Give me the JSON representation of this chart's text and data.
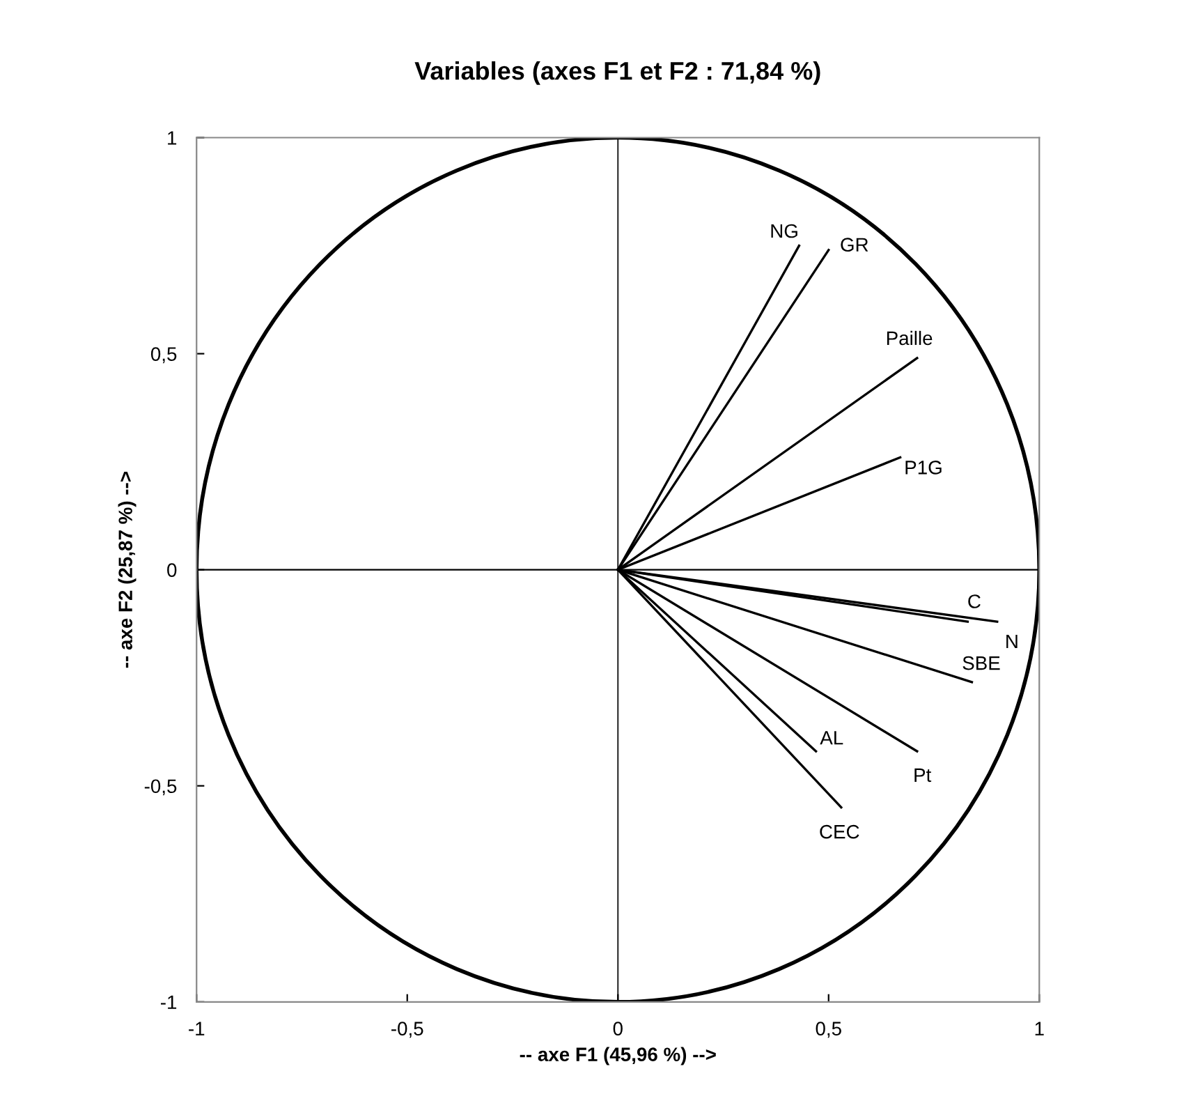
{
  "chart_data": {
    "type": "line",
    "title": "Variables (axes F1 et F2 : 71,84 %)",
    "xlabel": "-- axe F1 (45,96 %) -->",
    "ylabel": "-- axe F2 (25,87 %) -->",
    "xlim": [
      -1,
      1
    ],
    "ylim": [
      -1,
      1
    ],
    "xticks": [
      -1,
      {
        "value": -0.5,
        "label": "-0,5"
      },
      0,
      {
        "value": 0.5,
        "label": "0,5"
      },
      1
    ],
    "yticks": [
      -1,
      {
        "value": -0.5,
        "label": "-0,5"
      },
      0,
      {
        "value": 0.5,
        "label": "0,5"
      },
      1
    ],
    "grid": false,
    "legend": false,
    "marker": "none",
    "line_style": "solid",
    "ref_lines": [
      {
        "axis": "x",
        "value": 0,
        "color": "#333333"
      },
      {
        "axis": "y",
        "value": 0,
        "color": "#000000"
      }
    ],
    "series": [
      {
        "name": "NG",
        "color": "#000000",
        "x": [
          0,
          0.43
        ],
        "values": [
          0,
          0.75
        ]
      },
      {
        "name": "GR",
        "color": "#000000",
        "x": [
          0,
          0.5
        ],
        "values": [
          0,
          0.74
        ]
      },
      {
        "name": "Paille",
        "color": "#000000",
        "x": [
          0,
          0.71
        ],
        "values": [
          0,
          0.49
        ]
      },
      {
        "name": "P1G",
        "color": "#000000",
        "x": [
          0,
          0.67
        ],
        "values": [
          0,
          0.26
        ]
      },
      {
        "name": "C",
        "color": "#000000",
        "x": [
          0,
          0.83
        ],
        "values": [
          0,
          -0.12
        ]
      },
      {
        "name": "N",
        "color": "#000000",
        "x": [
          0,
          0.9
        ],
        "values": [
          0,
          -0.12
        ]
      },
      {
        "name": "SBE",
        "color": "#000000",
        "x": [
          0,
          0.84
        ],
        "values": [
          0,
          -0.26
        ]
      },
      {
        "name": "Pt",
        "color": "#000000",
        "x": [
          0,
          0.71
        ],
        "values": [
          0,
          -0.42
        ]
      },
      {
        "name": "AL",
        "color": "#000000",
        "x": [
          0,
          0.47
        ],
        "values": [
          0,
          -0.42
        ]
      },
      {
        "name": "CEC",
        "color": "#000000",
        "x": [
          0,
          0.53
        ],
        "values": [
          0,
          -0.55
        ]
      }
    ]
  }
}
